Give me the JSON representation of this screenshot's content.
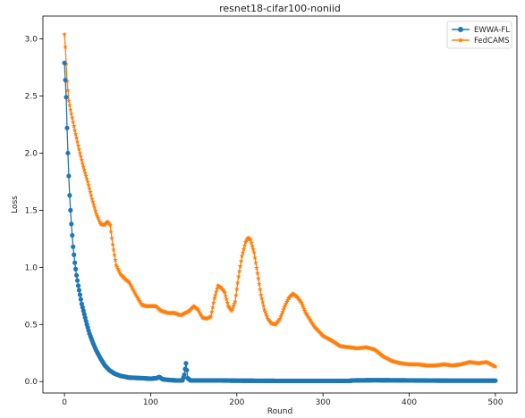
{
  "chart_data": {
    "type": "line",
    "title": "resnet18-cifar100-noniid",
    "xlabel": "Round",
    "ylabel": "Loss",
    "xlim": [
      -25,
      525
    ],
    "ylim": [
      -0.1,
      3.2
    ],
    "xticks": [
      0,
      100,
      200,
      300,
      400,
      500
    ],
    "yticks": [
      0.0,
      0.5,
      1.0,
      1.5,
      2.0,
      2.5,
      3.0
    ],
    "grid": false,
    "legend_position": "top-right",
    "series": [
      {
        "name": "EWWA-FL",
        "color": "#1f77b4",
        "marker": "circle",
        "points": [
          [
            0,
            2.79
          ],
          [
            2,
            2.49
          ],
          [
            3,
            2.22
          ],
          [
            4,
            2.0
          ],
          [
            5,
            1.8
          ],
          [
            6,
            1.63
          ],
          [
            7,
            1.5
          ],
          [
            8,
            1.38
          ],
          [
            9,
            1.28
          ],
          [
            10,
            1.18
          ],
          [
            12,
            1.04
          ],
          [
            14,
            0.93
          ],
          [
            16,
            0.84
          ],
          [
            18,
            0.76
          ],
          [
            20,
            0.68
          ],
          [
            23,
            0.59
          ],
          [
            26,
            0.5
          ],
          [
            29,
            0.42
          ],
          [
            33,
            0.34
          ],
          [
            37,
            0.27
          ],
          [
            42,
            0.2
          ],
          [
            47,
            0.14
          ],
          [
            52,
            0.1
          ],
          [
            58,
            0.07
          ],
          [
            65,
            0.05
          ],
          [
            75,
            0.035
          ],
          [
            90,
            0.03
          ],
          [
            100,
            0.025
          ],
          [
            107,
            0.03
          ],
          [
            110,
            0.04
          ],
          [
            114,
            0.02
          ],
          [
            120,
            0.015
          ],
          [
            130,
            0.01
          ],
          [
            137,
            0.01
          ],
          [
            139,
            0.06
          ],
          [
            140,
            0.11
          ],
          [
            141,
            0.16
          ],
          [
            142,
            0.1
          ],
          [
            143,
            0.03
          ],
          [
            146,
            0.01
          ],
          [
            160,
            0.01
          ],
          [
            180,
            0.01
          ],
          [
            200,
            0.008
          ],
          [
            250,
            0.006
          ],
          [
            300,
            0.006
          ],
          [
            330,
            0.006
          ],
          [
            335,
            0.01
          ],
          [
            360,
            0.012
          ],
          [
            400,
            0.01
          ],
          [
            450,
            0.008
          ],
          [
            500,
            0.008
          ]
        ]
      },
      {
        "name": "FedCAMS",
        "color": "#ff7f0e",
        "marker": "star",
        "points": [
          [
            0,
            3.04
          ],
          [
            1,
            2.93
          ],
          [
            2,
            2.78
          ],
          [
            3,
            2.63
          ],
          [
            4,
            2.55
          ],
          [
            5,
            2.46
          ],
          [
            7,
            2.38
          ],
          [
            9,
            2.31
          ],
          [
            12,
            2.2
          ],
          [
            15,
            2.1
          ],
          [
            18,
            2.0
          ],
          [
            22,
            1.88
          ],
          [
            27,
            1.75
          ],
          [
            32,
            1.6
          ],
          [
            37,
            1.47
          ],
          [
            42,
            1.38
          ],
          [
            46,
            1.37
          ],
          [
            50,
            1.4
          ],
          [
            53,
            1.37
          ],
          [
            56,
            1.2
          ],
          [
            60,
            1.02
          ],
          [
            65,
            0.94
          ],
          [
            70,
            0.9
          ],
          [
            75,
            0.87
          ],
          [
            80,
            0.8
          ],
          [
            85,
            0.73
          ],
          [
            90,
            0.67
          ],
          [
            95,
            0.66
          ],
          [
            100,
            0.66
          ],
          [
            106,
            0.66
          ],
          [
            112,
            0.62
          ],
          [
            120,
            0.6
          ],
          [
            128,
            0.6
          ],
          [
            135,
            0.58
          ],
          [
            140,
            0.6
          ],
          [
            145,
            0.62
          ],
          [
            150,
            0.66
          ],
          [
            155,
            0.63
          ],
          [
            160,
            0.56
          ],
          [
            165,
            0.55
          ],
          [
            170,
            0.57
          ],
          [
            174,
            0.73
          ],
          [
            178,
            0.84
          ],
          [
            182,
            0.82
          ],
          [
            186,
            0.78
          ],
          [
            190,
            0.66
          ],
          [
            194,
            0.62
          ],
          [
            198,
            0.7
          ],
          [
            202,
            0.92
          ],
          [
            206,
            1.1
          ],
          [
            210,
            1.22
          ],
          [
            213,
            1.26
          ],
          [
            216,
            1.24
          ],
          [
            220,
            1.13
          ],
          [
            224,
            0.95
          ],
          [
            228,
            0.76
          ],
          [
            232,
            0.63
          ],
          [
            236,
            0.55
          ],
          [
            240,
            0.51
          ],
          [
            245,
            0.5
          ],
          [
            250,
            0.55
          ],
          [
            255,
            0.65
          ],
          [
            260,
            0.73
          ],
          [
            265,
            0.77
          ],
          [
            270,
            0.74
          ],
          [
            275,
            0.69
          ],
          [
            280,
            0.6
          ],
          [
            290,
            0.48
          ],
          [
            300,
            0.4
          ],
          [
            310,
            0.36
          ],
          [
            320,
            0.31
          ],
          [
            330,
            0.3
          ],
          [
            340,
            0.29
          ],
          [
            350,
            0.3
          ],
          [
            360,
            0.28
          ],
          [
            370,
            0.22
          ],
          [
            380,
            0.18
          ],
          [
            390,
            0.16
          ],
          [
            400,
            0.15
          ],
          [
            410,
            0.15
          ],
          [
            420,
            0.14
          ],
          [
            430,
            0.14
          ],
          [
            440,
            0.15
          ],
          [
            450,
            0.14
          ],
          [
            460,
            0.15
          ],
          [
            470,
            0.17
          ],
          [
            480,
            0.16
          ],
          [
            490,
            0.17
          ],
          [
            495,
            0.15
          ],
          [
            500,
            0.13
          ]
        ]
      }
    ]
  }
}
